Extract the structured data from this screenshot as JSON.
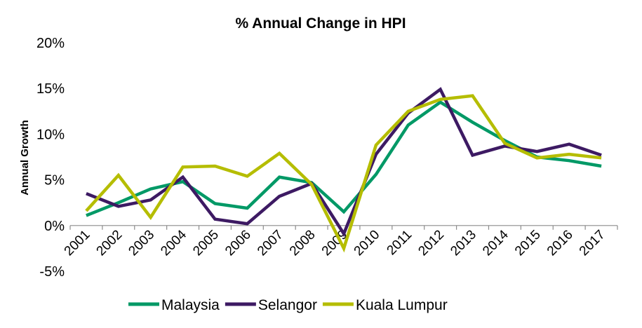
{
  "chart_data": {
    "type": "line",
    "title": "% Annual Change in HPI",
    "xlabel": "",
    "ylabel": "Annual Growth",
    "ylim": [
      -5,
      20
    ],
    "yticks": [
      -5,
      0,
      5,
      10,
      15,
      20
    ],
    "ytick_labels": [
      "-5%",
      "0%",
      "5%",
      "10%",
      "15%",
      "20%"
    ],
    "x": [
      "2001",
      "2002",
      "2003",
      "2004",
      "2005",
      "2006",
      "2007",
      "2008",
      "2009",
      "2010",
      "2011",
      "2012",
      "2013",
      "2014",
      "2015",
      "2016",
      "2017"
    ],
    "grid": false,
    "legend": "bottom",
    "series": [
      {
        "name": "Malaysia",
        "color": "#009966",
        "values": [
          1.1,
          2.5,
          4.0,
          4.8,
          2.4,
          1.9,
          5.3,
          4.7,
          1.5,
          5.6,
          11.0,
          13.5,
          11.3,
          9.3,
          7.5,
          7.1,
          6.5
        ]
      },
      {
        "name": "Selangor",
        "color": "#3d1a63",
        "values": [
          3.5,
          2.1,
          2.8,
          5.3,
          0.7,
          0.2,
          3.2,
          4.6,
          -0.9,
          7.8,
          12.3,
          14.9,
          7.7,
          8.7,
          8.1,
          8.9,
          7.7
        ]
      },
      {
        "name": "Kuala Lumpur",
        "color": "#b5bd00",
        "values": [
          1.6,
          5.5,
          0.9,
          6.4,
          6.5,
          5.4,
          7.9,
          4.5,
          -2.5,
          8.8,
          12.5,
          13.8,
          14.2,
          9.0,
          7.4,
          7.8,
          7.4
        ]
      }
    ]
  }
}
